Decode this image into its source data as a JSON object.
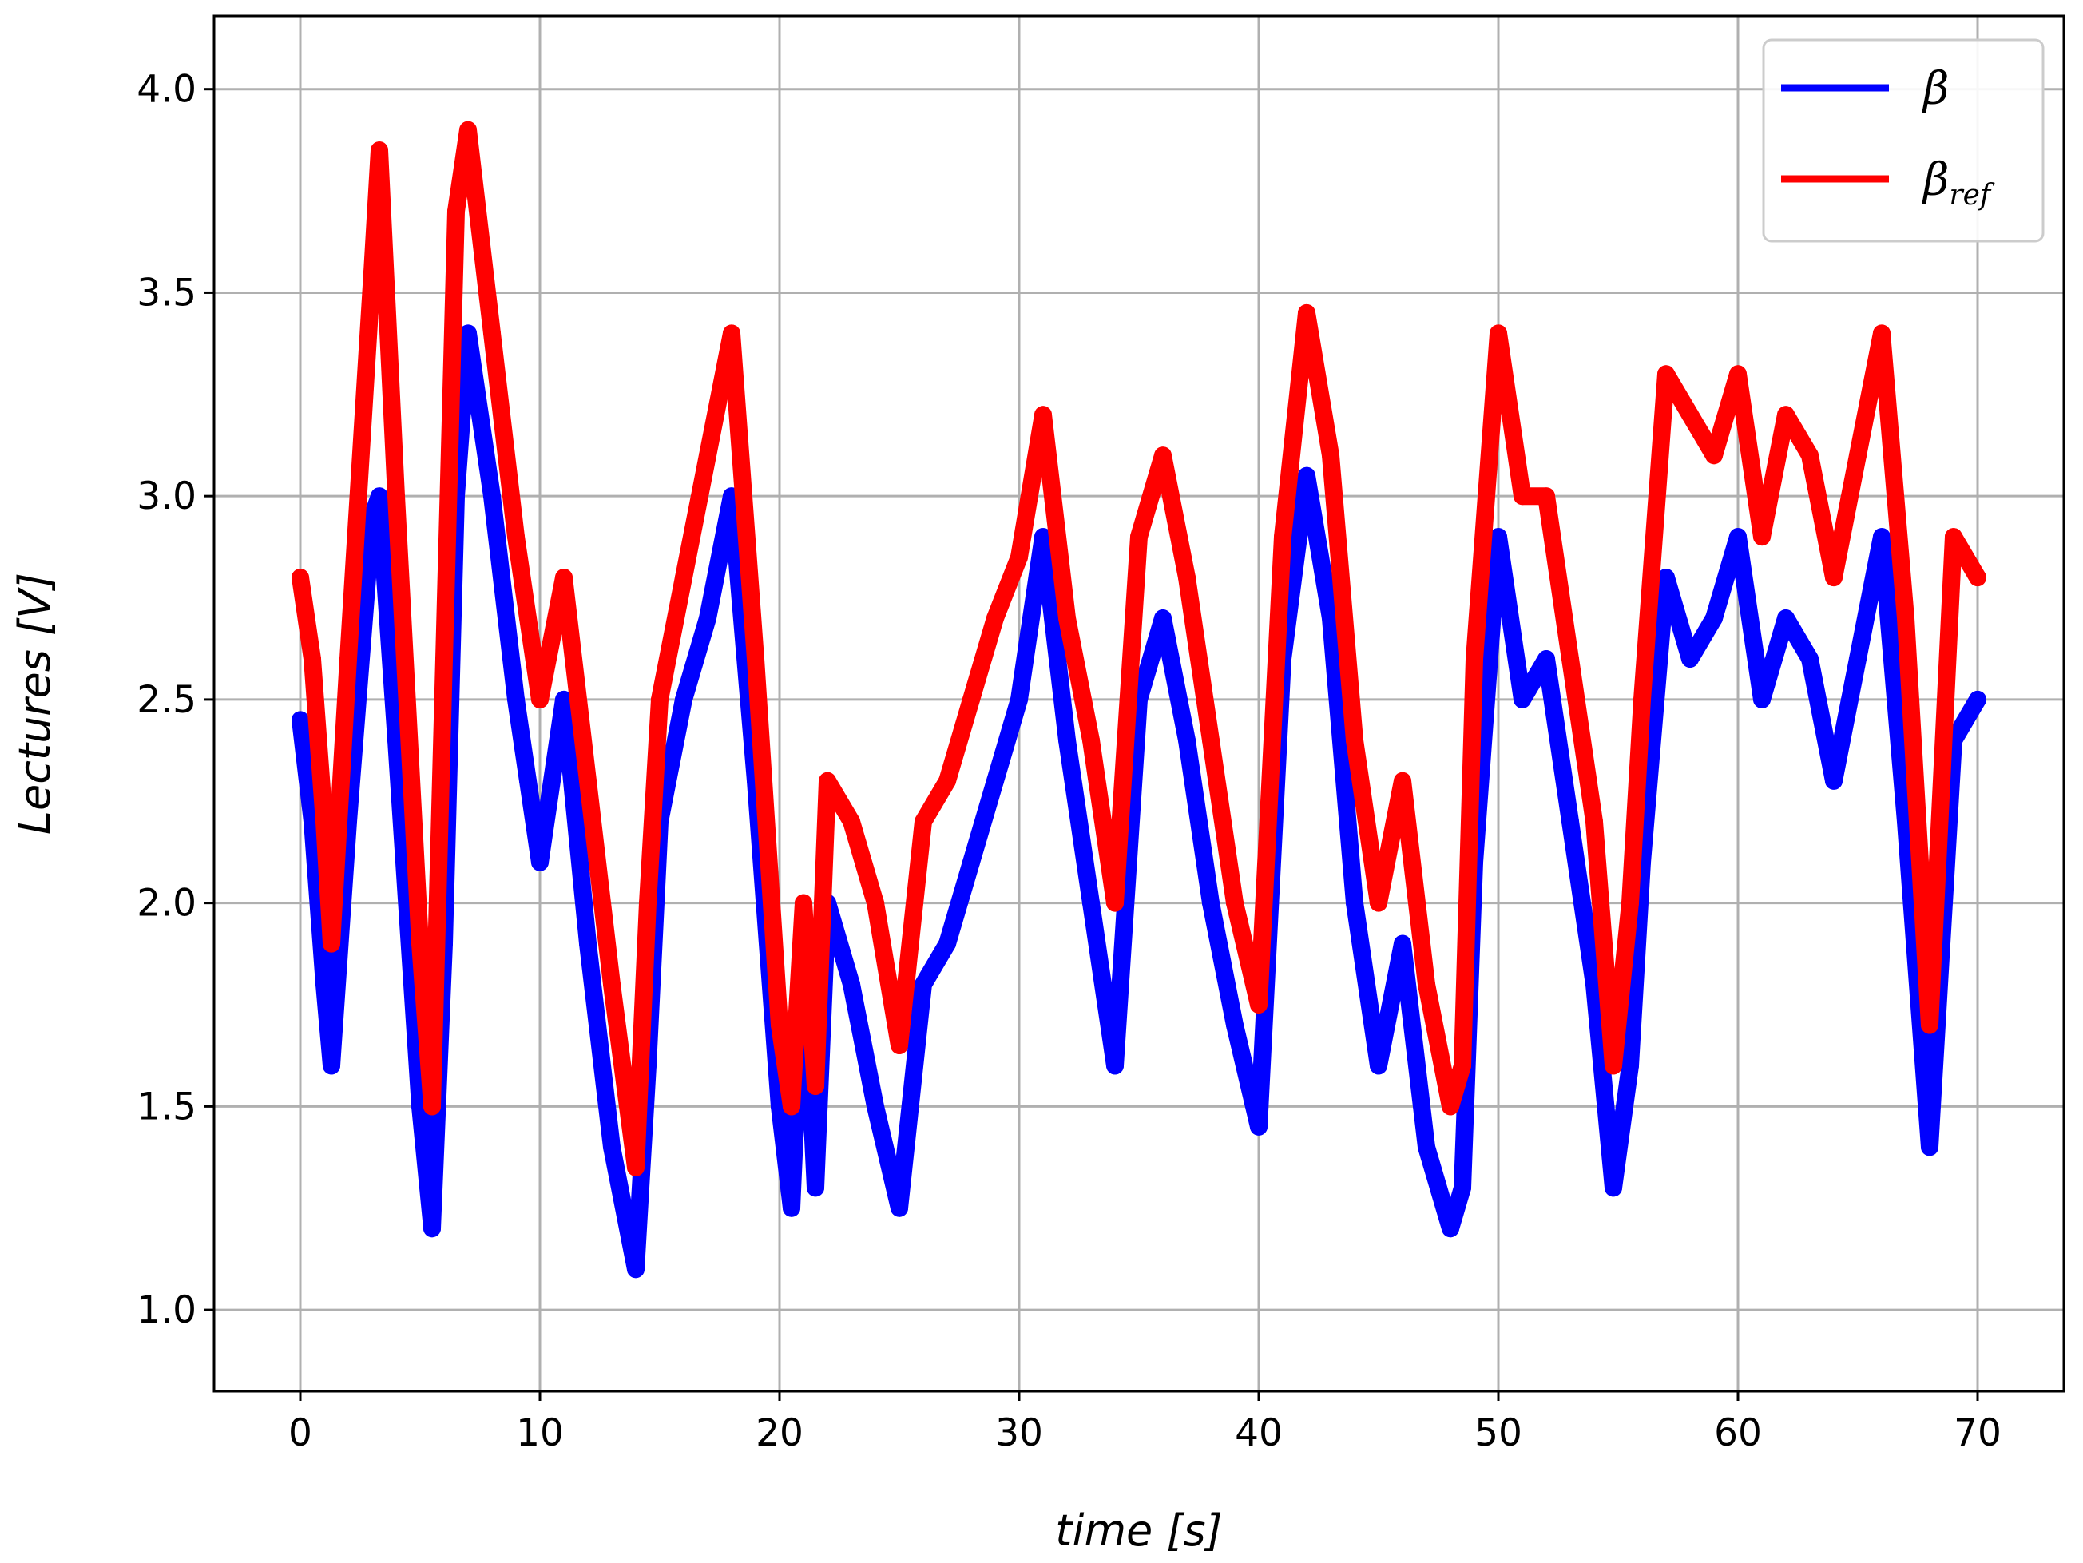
{
  "chart_data": {
    "type": "line",
    "title": "",
    "xlabel": "time   [s]",
    "ylabel": "Lectures   [V]",
    "xlim": [
      -3.6,
      73.6
    ],
    "ylim": [
      0.8,
      4.18
    ],
    "xticks": [
      0,
      10,
      20,
      30,
      40,
      50,
      60,
      70
    ],
    "xtick_labels": [
      "0",
      "10",
      "20",
      "30",
      "40",
      "50",
      "60",
      "70"
    ],
    "yticks": [
      1.0,
      1.5,
      2.0,
      2.5,
      3.0,
      3.5,
      4.0
    ],
    "ytick_labels": [
      "1.0",
      "1.5",
      "2.0",
      "2.5",
      "3.0",
      "3.5",
      "4.0"
    ],
    "grid": true,
    "legend_position": "top-right",
    "series": [
      {
        "name": "β",
        "legend_base": "β",
        "legend_sub": "",
        "color": "#0000ff",
        "x": [
          0,
          0.5,
          1,
          1.3,
          2,
          3,
          3.3,
          4,
          5,
          5.5,
          6,
          6.5,
          7,
          8,
          9,
          9.5,
          10,
          11,
          12,
          13,
          14,
          14.5,
          15,
          16,
          17,
          18,
          19,
          20,
          20.5,
          21,
          21.5,
          22,
          23,
          24,
          25,
          26,
          27,
          28,
          29,
          30,
          31,
          32,
          33,
          34,
          35,
          36,
          37,
          38,
          39,
          40,
          41,
          42,
          43,
          44,
          45,
          46,
          47,
          48,
          48.5,
          49,
          50,
          51,
          52,
          53,
          54,
          54.8,
          55.5,
          56,
          57,
          58,
          59,
          60,
          61,
          62,
          63,
          64,
          65,
          66,
          67,
          68,
          69,
          70
        ],
        "y": [
          2.45,
          2.2,
          1.8,
          1.6,
          2.2,
          2.95,
          3.0,
          2.4,
          1.5,
          1.2,
          1.9,
          3.0,
          3.4,
          3.0,
          2.5,
          2.3,
          2.1,
          2.5,
          1.9,
          1.4,
          1.1,
          1.6,
          2.2,
          2.5,
          2.7,
          3.0,
          2.3,
          1.5,
          1.25,
          1.9,
          1.3,
          2.0,
          1.8,
          1.5,
          1.25,
          1.8,
          1.9,
          2.1,
          2.3,
          2.5,
          2.9,
          2.4,
          2.0,
          1.6,
          2.5,
          2.7,
          2.4,
          2.0,
          1.7,
          1.45,
          2.6,
          3.05,
          2.7,
          2.0,
          1.6,
          1.9,
          1.4,
          1.2,
          1.3,
          2.1,
          2.9,
          2.5,
          2.6,
          2.2,
          1.8,
          1.3,
          1.6,
          2.1,
          2.8,
          2.6,
          2.7,
          2.9,
          2.5,
          2.7,
          2.6,
          2.3,
          2.6,
          2.9,
          2.2,
          1.4,
          2.4,
          2.5
        ]
      },
      {
        "name": "β_ref",
        "legend_base": "β",
        "legend_sub": "ref",
        "color": "#ff0000",
        "x": [
          0,
          0.5,
          1,
          1.3,
          2,
          3,
          3.3,
          4,
          5,
          5.5,
          6,
          6.5,
          7,
          8,
          9,
          9.5,
          10,
          11,
          12,
          13,
          14,
          14.5,
          15,
          16,
          17,
          18,
          19,
          20,
          20.5,
          21,
          21.5,
          22,
          23,
          24,
          25,
          26,
          27,
          28,
          29,
          30,
          31,
          32,
          33,
          34,
          35,
          36,
          37,
          38,
          39,
          40,
          41,
          42,
          43,
          44,
          45,
          46,
          47,
          48,
          48.5,
          49,
          50,
          51,
          52,
          53,
          54,
          54.8,
          55.5,
          56,
          57,
          58,
          59,
          60,
          61,
          62,
          63,
          64,
          65,
          66,
          67,
          68,
          69,
          70
        ],
        "y": [
          2.8,
          2.6,
          2.2,
          1.9,
          2.6,
          3.55,
          3.85,
          3.0,
          1.9,
          1.5,
          2.6,
          3.7,
          3.9,
          3.4,
          2.9,
          2.7,
          2.5,
          2.8,
          2.3,
          1.8,
          1.35,
          2.0,
          2.5,
          2.8,
          3.1,
          3.4,
          2.6,
          1.7,
          1.5,
          2.0,
          1.55,
          2.3,
          2.2,
          2.0,
          1.65,
          2.2,
          2.3,
          2.5,
          2.7,
          2.85,
          3.2,
          2.7,
          2.4,
          2.0,
          2.9,
          3.1,
          2.8,
          2.4,
          2.0,
          1.75,
          2.9,
          3.45,
          3.1,
          2.4,
          2.0,
          2.3,
          1.8,
          1.5,
          1.6,
          2.6,
          3.4,
          3.0,
          3.0,
          2.6,
          2.2,
          1.6,
          2.0,
          2.5,
          3.3,
          3.2,
          3.1,
          3.3,
          2.9,
          3.2,
          3.1,
          2.8,
          3.1,
          3.4,
          2.7,
          1.7,
          2.9,
          2.8
        ]
      }
    ]
  }
}
